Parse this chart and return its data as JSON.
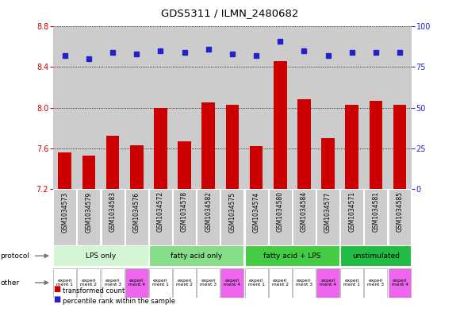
{
  "title": "GDS5311 / ILMN_2480682",
  "samples": [
    "GSM1034573",
    "GSM1034579",
    "GSM1034583",
    "GSM1034576",
    "GSM1034572",
    "GSM1034578",
    "GSM1034582",
    "GSM1034575",
    "GSM1034574",
    "GSM1034580",
    "GSM1034584",
    "GSM1034577",
    "GSM1034571",
    "GSM1034581",
    "GSM1034585"
  ],
  "bar_values": [
    7.56,
    7.53,
    7.72,
    7.63,
    8.0,
    7.67,
    8.05,
    8.03,
    7.62,
    8.46,
    8.08,
    7.7,
    8.03,
    8.07,
    8.03
  ],
  "dot_values": [
    82,
    80,
    84,
    83,
    85,
    84,
    86,
    83,
    82,
    91,
    85,
    82,
    84,
    84,
    84
  ],
  "y_min": 7.2,
  "y_max": 8.8,
  "y_ticks": [
    7.2,
    7.6,
    8.0,
    8.4,
    8.8
  ],
  "y2_ticks": [
    0,
    25,
    50,
    75,
    100
  ],
  "bar_color": "#cc0000",
  "dot_color": "#2222cc",
  "protocols": [
    {
      "label": "LPS only",
      "start": 0,
      "end": 4,
      "color": "#d4f5d4"
    },
    {
      "label": "fatty acid only",
      "start": 4,
      "end": 8,
      "color": "#88dd88"
    },
    {
      "label": "fatty acid + LPS",
      "start": 8,
      "end": 12,
      "color": "#44cc44"
    },
    {
      "label": "unstimulated",
      "start": 12,
      "end": 15,
      "color": "#22bb44"
    }
  ],
  "experiment_per_sample": [
    1,
    2,
    3,
    4,
    1,
    2,
    3,
    4,
    1,
    2,
    3,
    4,
    1,
    3,
    4
  ],
  "bg_color": "#cccccc",
  "plot_bg": "#cccccc",
  "grid_color": "#000000",
  "tick_color_left": "#cc0000",
  "tick_color_right": "#2222cc",
  "xticklabel_bg": "#cccccc"
}
